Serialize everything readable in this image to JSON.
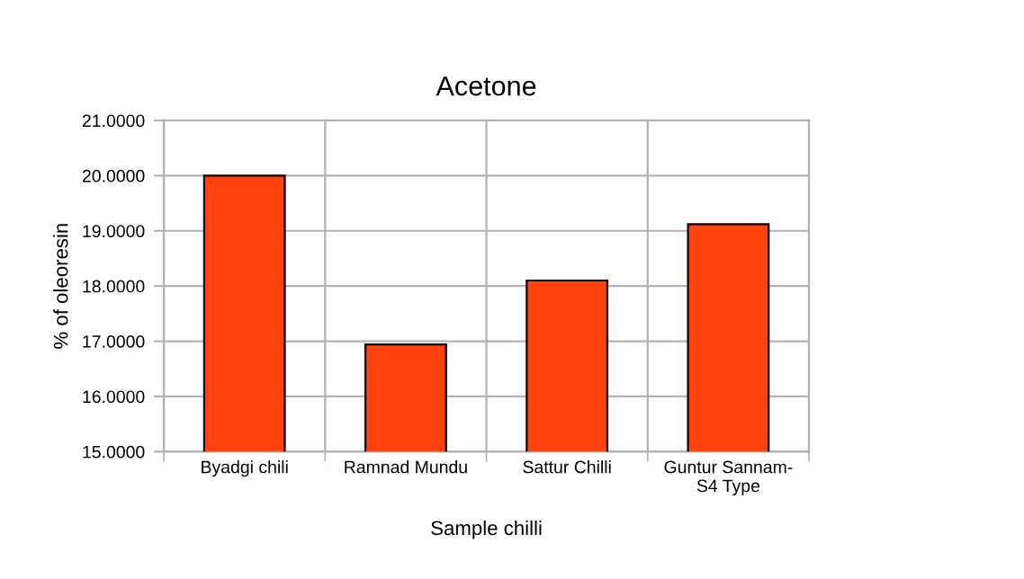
{
  "chart_data": {
    "type": "bar",
    "title": "Acetone",
    "xlabel": "Sample chilli",
    "ylabel": "% of oleoresin",
    "categories": [
      "Byadgi chili",
      "Ramnad Mundu",
      "Sattur Chilli",
      "Guntur Sannam-\nS4 Type"
    ],
    "series": [
      {
        "color": "#ff420e",
        "values": [
          20.0,
          16.94,
          18.1,
          19.12
        ]
      }
    ],
    "ylim": [
      15,
      21
    ],
    "yticks": [
      {
        "value": 15,
        "label": "15.0000"
      },
      {
        "value": 16,
        "label": "16.0000"
      },
      {
        "value": 17,
        "label": "17.0000"
      },
      {
        "value": 18,
        "label": "18.0000"
      },
      {
        "value": 19,
        "label": "19.0000"
      },
      {
        "value": 20,
        "label": "20.0000"
      },
      {
        "value": 21,
        "label": "21.0000"
      }
    ],
    "grid": true,
    "legend": false
  }
}
